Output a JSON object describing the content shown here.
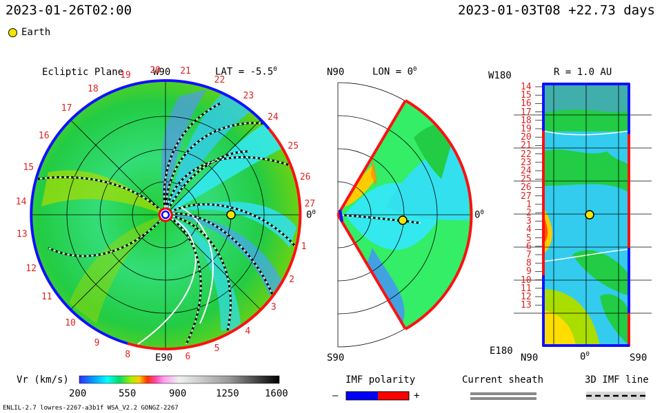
{
  "header": {
    "model_time": "2023-01-26T02:00",
    "ref_time": "2023-01-03T08 +22.73 days"
  },
  "legend": {
    "earth_label": "Earth",
    "earth_color": "#f5e400"
  },
  "panels": {
    "ecliptic": {
      "title": "Ecliptic Plane",
      "lat_label": "LAT = -5.5",
      "lat_sup": "0",
      "top_label": "W90",
      "bottom_label": "E90",
      "right_label": "0",
      "right_sup": "0",
      "rotation_numbers": [
        "1",
        "2",
        "3",
        "4",
        "5",
        "6",
        "8",
        "9",
        "10",
        "11",
        "12",
        "13",
        "14",
        "15",
        "16",
        "17",
        "18",
        "19",
        "20",
        "21",
        "22",
        "23",
        "24",
        "25",
        "26",
        "27"
      ]
    },
    "meridional": {
      "top_label": "N90",
      "lon_label": "LON = 0",
      "lon_sup": "0",
      "bottom_label": "S90",
      "right_label": "0",
      "right_sup": "0"
    },
    "radial": {
      "title": "R = 1.0 AU",
      "top_left": "W180",
      "bottom_left": "E180",
      "x_labels": [
        "N90",
        "0",
        "S90"
      ],
      "x_sup": "0",
      "rotation_numbers": [
        "14",
        "15",
        "16",
        "17",
        "18",
        "19",
        "20",
        "21",
        "22",
        "23",
        "24",
        "25",
        "26",
        "27",
        "1",
        "2",
        "3",
        "4",
        "5",
        "6",
        "7",
        "8",
        "9",
        "10",
        "11",
        "12",
        "13"
      ]
    }
  },
  "colorbar": {
    "label": "Vr (km/s)",
    "ticks": [
      "200",
      "550",
      "900",
      "1250",
      "1600"
    ]
  },
  "imf_polarity": {
    "title": "IMF polarity",
    "minus": "–",
    "plus": "+",
    "neg_color": "#0000ff",
    "pos_color": "#ff0000"
  },
  "current_sheath": {
    "title": "Current sheath"
  },
  "imf_line": {
    "title": "3D IMF line"
  },
  "footer": {
    "left": "ENLIL-2.7 lowres-2267-a3b1f WSA_V2.2 GONGZ-2267"
  },
  "chart_data": {
    "type": "heatmap",
    "quantity": "Vr (km/s)",
    "color_scale_range": [
      200,
      1600
    ],
    "color_scale_ticks": [
      200,
      550,
      900,
      1250,
      1600
    ],
    "earth": {
      "r_au": 1.0,
      "lon_deg": 0
    },
    "panels": [
      "Ecliptic Plane",
      "LON = 0",
      "R = 1.0 AU"
    ]
  }
}
